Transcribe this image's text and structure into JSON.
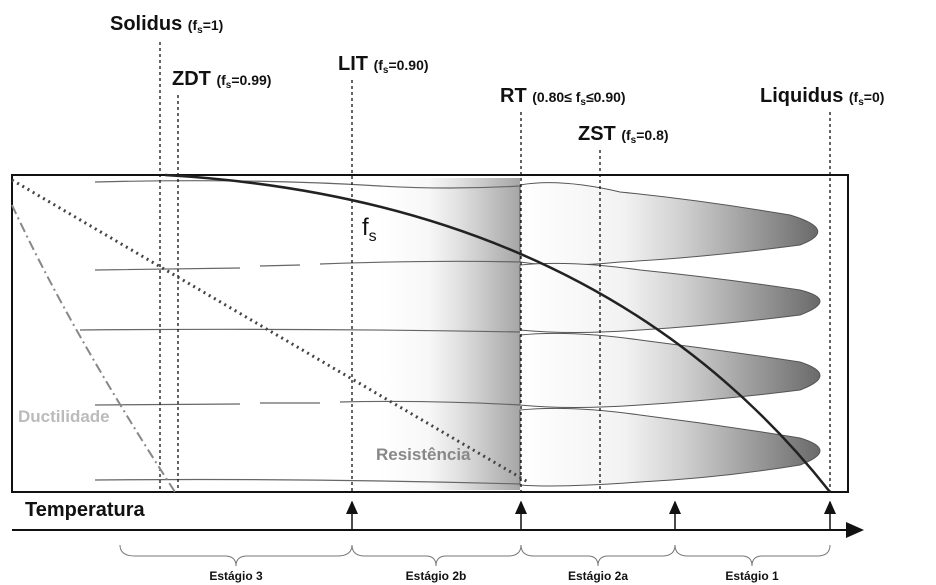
{
  "markers": [
    {
      "name": "Solidus",
      "condition": [
        "(f",
        "s",
        "=1)"
      ]
    },
    {
      "name": "ZDT",
      "condition": [
        "(f",
        "s",
        "=0.99)"
      ]
    },
    {
      "name": "LIT",
      "condition": [
        "(f",
        "s",
        "=0.90)"
      ]
    },
    {
      "name": "RT",
      "condition": [
        "(0.80≤ f",
        "s",
        "≤0.90)"
      ]
    },
    {
      "name": "ZST",
      "condition": [
        "(f",
        "s",
        "=0.8)"
      ]
    },
    {
      "name": "Liquidus",
      "condition": [
        "(f",
        "s",
        "=0)"
      ]
    }
  ],
  "curve_label": [
    "f",
    "s"
  ],
  "ductility_label": "Ductilidade",
  "strength_label": "Resistência",
  "axis_label": "Temperatura",
  "stages": [
    "Estágio 3",
    "Estágio 2b",
    "Estágio 2a",
    "Estágio 1"
  ]
}
